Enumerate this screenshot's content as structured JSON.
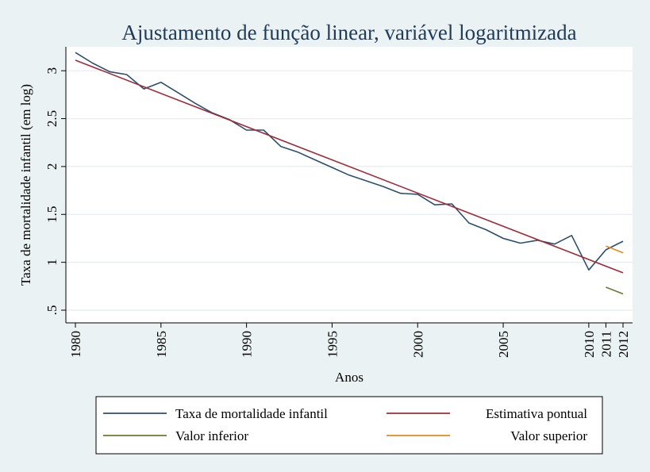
{
  "chart_data": {
    "type": "line",
    "title": "Ajustamento de função linear, variável logaritmizada",
    "xlabel": "Anos",
    "ylabel": "Taxa de mortalidade infantil (em log)",
    "xlim": [
      1980,
      2012
    ],
    "ylim": [
      0.5,
      3.25
    ],
    "x_ticks": [
      {
        "value": 1980,
        "label": "1980"
      },
      {
        "value": 1985,
        "label": "1985"
      },
      {
        "value": 1990,
        "label": "1990"
      },
      {
        "value": 1995,
        "label": "1995"
      },
      {
        "value": 2000,
        "label": "2000"
      },
      {
        "value": 2005,
        "label": "2005"
      },
      {
        "value": 2010,
        "label": "2010"
      },
      {
        "value": 2011,
        "label": "2011"
      },
      {
        "value": 2012,
        "label": "2012"
      }
    ],
    "y_ticks": [
      {
        "value": 0.5,
        "label": ".5"
      },
      {
        "value": 1.0,
        "label": "1"
      },
      {
        "value": 1.5,
        "label": "1.5"
      },
      {
        "value": 2.0,
        "label": "2"
      },
      {
        "value": 2.5,
        "label": "2.5"
      },
      {
        "value": 3.0,
        "label": "3"
      }
    ],
    "grid": true,
    "legend_position": "bottom",
    "series": [
      {
        "name": "Taxa de mortalidade infantil",
        "color": "#2b4f6e",
        "points": [
          [
            1980,
            3.19
          ],
          [
            1981,
            3.08
          ],
          [
            1982,
            2.99
          ],
          [
            1983,
            2.96
          ],
          [
            1984,
            2.81
          ],
          [
            1985,
            2.88
          ],
          [
            1986,
            2.77
          ],
          [
            1987,
            2.66
          ],
          [
            1988,
            2.56
          ],
          [
            1989,
            2.49
          ],
          [
            1990,
            2.38
          ],
          [
            1991,
            2.38
          ],
          [
            1992,
            2.21
          ],
          [
            1993,
            2.15
          ],
          [
            1994,
            2.07
          ],
          [
            1995,
            1.99
          ],
          [
            1996,
            1.91
          ],
          [
            1997,
            1.85
          ],
          [
            1998,
            1.79
          ],
          [
            1999,
            1.72
          ],
          [
            2000,
            1.71
          ],
          [
            2001,
            1.6
          ],
          [
            2002,
            1.61
          ],
          [
            2003,
            1.41
          ],
          [
            2004,
            1.34
          ],
          [
            2005,
            1.25
          ],
          [
            2006,
            1.2
          ],
          [
            2007,
            1.23
          ],
          [
            2008,
            1.19
          ],
          [
            2009,
            1.28
          ],
          [
            2010,
            0.92
          ],
          [
            2011,
            1.13
          ],
          [
            2012,
            1.22
          ]
        ]
      },
      {
        "name": "Estimativa pontual",
        "color": "#9b2d3a",
        "points": [
          [
            1980,
            3.11
          ],
          [
            2012,
            0.89
          ]
        ]
      },
      {
        "name": "Valor inferior",
        "color": "#6b7a2e",
        "points": [
          [
            2011,
            0.74
          ],
          [
            2012,
            0.67
          ]
        ]
      },
      {
        "name": "Valor superior",
        "color": "#e58a1f",
        "points": [
          [
            2011,
            1.17
          ],
          [
            2012,
            1.1
          ]
        ]
      }
    ]
  }
}
